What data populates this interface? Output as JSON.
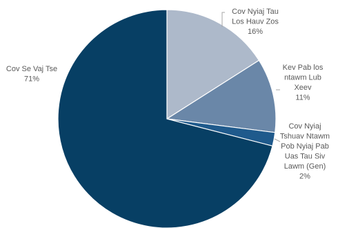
{
  "chart_data": {
    "type": "pie",
    "title": "",
    "slices": [
      {
        "label_lines": [
          "Cov Nyiaj Tau",
          "Los Hauv Zos"
        ],
        "value": 16,
        "percent_label": "16%",
        "color": "#adb9ca"
      },
      {
        "label_lines": [
          "Kev Pab los",
          "ntawm Lub",
          "Xeev"
        ],
        "value": 11,
        "percent_label": "11%",
        "color": "#6a87a8"
      },
      {
        "label_lines": [
          "Cov Nyiaj",
          "Tshuav Ntawm",
          "Pob Nyiaj Pab",
          "Uas Tau Siv",
          "Lawm (Gen)"
        ],
        "value": 2,
        "percent_label": "2%",
        "color": "#1f5a8c"
      },
      {
        "label_lines": [
          "Cov Se Vaj Tse"
        ],
        "value": 71,
        "percent_label": "71%",
        "color": "#073f64"
      }
    ]
  }
}
